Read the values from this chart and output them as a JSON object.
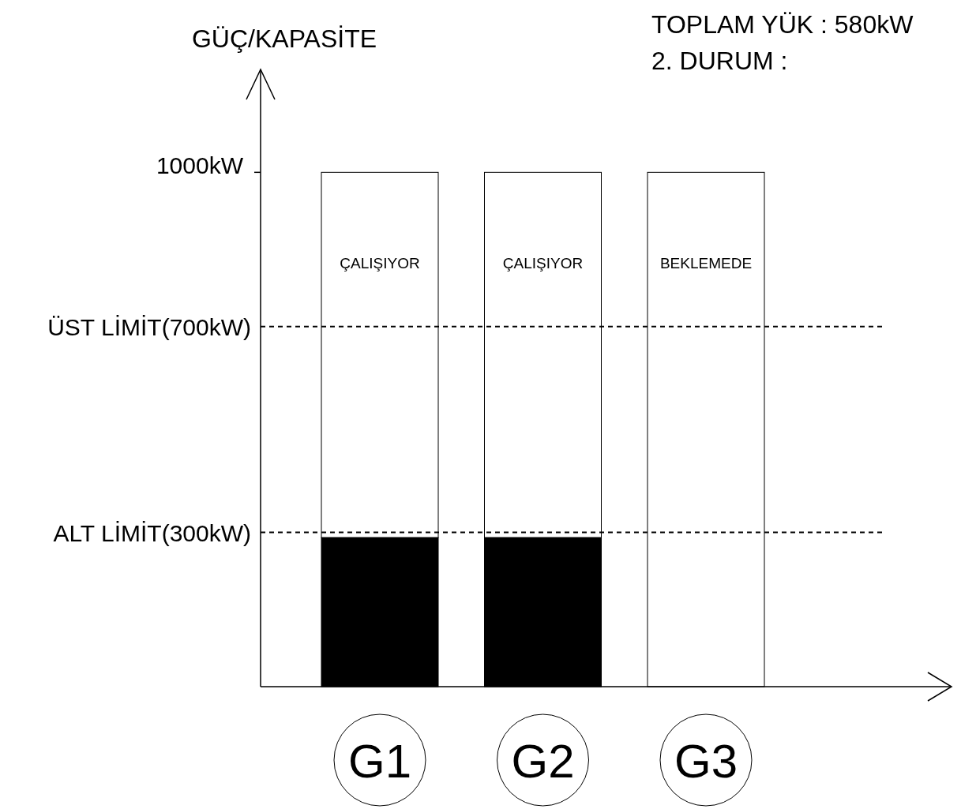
{
  "chart_data": {
    "type": "bar",
    "title": "TOPLAM YÜK : 580kW",
    "subtitle": "2. DURUM :",
    "ylabel": "GÜÇ/KAPASİTE",
    "categories": [
      "G1",
      "G2",
      "G3"
    ],
    "stacked": true,
    "series": [
      {
        "color": "#000000",
        "values": [
          290,
          290,
          0
        ]
      },
      {
        "color": "#ffffff",
        "values": [
          710,
          710,
          1000
        ]
      }
    ],
    "ylim": [
      0,
      1200
    ],
    "yticks": [
      {
        "value": 1000,
        "label": "1000kW"
      }
    ],
    "grid": false,
    "ref_lines": [
      {
        "axis": "y",
        "value": 700,
        "label": "ÜST LİMİT(700kW)",
        "line_style": "dashed"
      },
      {
        "axis": "y",
        "value": 300,
        "label": "ALT LİMİT(300kW)",
        "line_style": "dashed"
      }
    ],
    "annotations": [
      "ÇALIŞIYOR",
      "ÇALIŞIYOR",
      "BEKLEMEDE"
    ]
  }
}
